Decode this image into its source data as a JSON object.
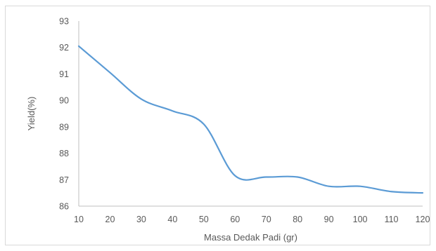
{
  "chart_data": {
    "type": "line",
    "title": "",
    "xlabel": "Massa Dedak Padi (gr)",
    "ylabel": "Yield(%)",
    "x": [
      10,
      20,
      30,
      40,
      50,
      60,
      70,
      80,
      90,
      100,
      110,
      120
    ],
    "xticks": [
      "10",
      "20",
      "30",
      "40",
      "50",
      "60",
      "70",
      "80",
      "90",
      "100",
      "110",
      "120"
    ],
    "yticks": [
      "86",
      "87",
      "88",
      "89",
      "90",
      "91",
      "92",
      "93"
    ],
    "xlim": [
      10,
      120
    ],
    "ylim": [
      86,
      93
    ],
    "grid": false,
    "series": [
      {
        "values": [
          92.05,
          91.05,
          90.05,
          89.6,
          89.1,
          87.15,
          87.1,
          87.1,
          86.75,
          86.75,
          86.55,
          86.5
        ],
        "color": "#5b9bd5"
      }
    ]
  }
}
